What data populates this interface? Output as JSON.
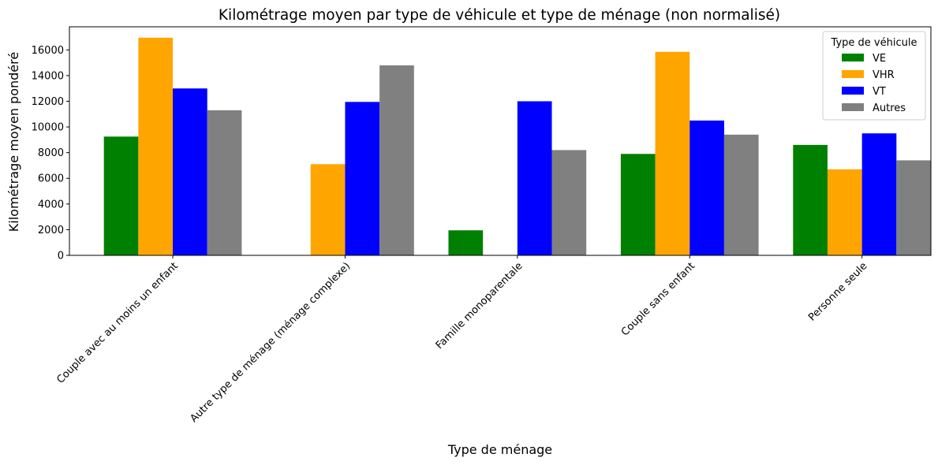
{
  "chart_data": {
    "type": "bar",
    "title": "Kilométrage moyen par type de véhicule et type de ménage (non normalisé)",
    "xlabel": "Type de ménage",
    "ylabel": "Kilométrage moyen pondéré",
    "ylim": [
      0,
      17800
    ],
    "yticks": [
      0,
      2000,
      4000,
      6000,
      8000,
      10000,
      12000,
      14000,
      16000
    ],
    "categories": [
      "Couple avec au moins un enfant",
      "Autre type de ménage (ménage complexe)",
      "Famille monoparentale",
      "Couple sans enfant",
      "Personne seule"
    ],
    "series": [
      {
        "name": "VE",
        "color": "#008000",
        "values": [
          9250,
          null,
          1950,
          7900,
          8600
        ]
      },
      {
        "name": "VHR",
        "color": "#ffa500",
        "values": [
          16950,
          7100,
          null,
          15850,
          6700
        ]
      },
      {
        "name": "VT",
        "color": "#0000ff",
        "values": [
          13000,
          11950,
          12000,
          10500,
          9500
        ]
      },
      {
        "name": "Autres",
        "color": "#808080",
        "values": [
          11300,
          14800,
          8200,
          9400,
          7400
        ]
      }
    ],
    "legend": {
      "title": "Type de véhicule",
      "position": "top-right"
    },
    "grid": false
  }
}
